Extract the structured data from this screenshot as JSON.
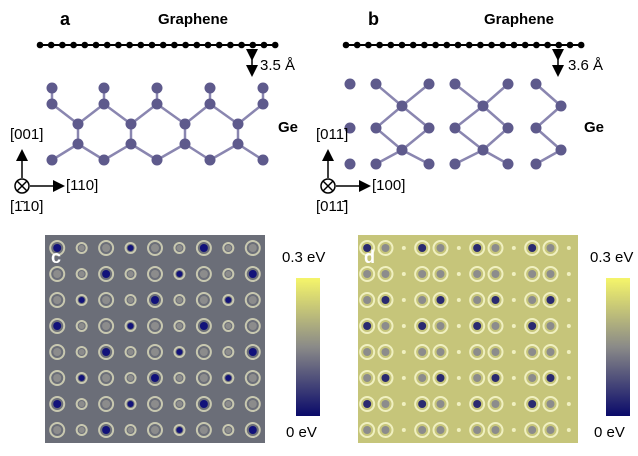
{
  "panels": [
    {
      "label": "a",
      "top_layer": "Graphene",
      "spacing": "3.5 Å",
      "substrate": "Ge",
      "axis_up": "[001]",
      "axis_right": "[110]",
      "axis_out": "[1̄10]"
    },
    {
      "label": "b",
      "top_layer": "Graphene",
      "spacing": "3.6 Å",
      "substrate": "Ge",
      "axis_up": "[011]",
      "axis_right": "[100]",
      "axis_out": "[011̄]"
    },
    {
      "label": "c",
      "colorbar_max": "0.3 eV",
      "colorbar_min": "0 eV"
    },
    {
      "label": "d",
      "colorbar_max": "0.3 eV",
      "colorbar_min": "0 eV"
    }
  ]
}
